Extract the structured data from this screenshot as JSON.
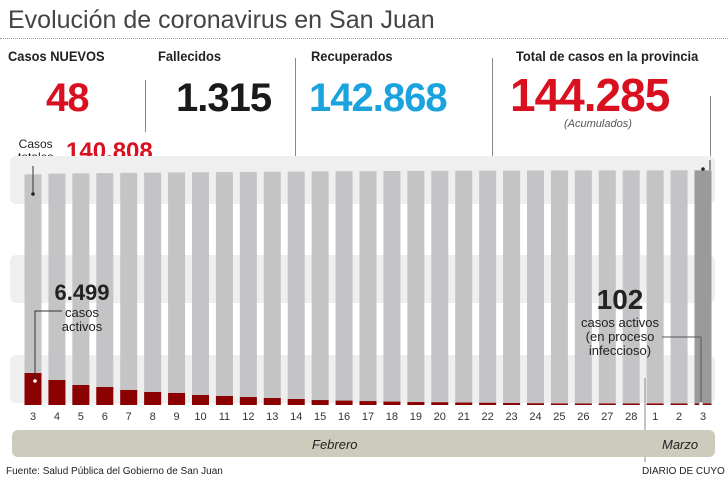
{
  "title": "Evolución de coronavirus en San Juan",
  "stats": {
    "nuevos": {
      "label": "Casos NUEVOS",
      "value": "48",
      "color": "#d8101f"
    },
    "fallecidos": {
      "label": "Fallecidos",
      "value": "1.315",
      "color": "#1a1a1a"
    },
    "recuperados": {
      "label": "Recuperados",
      "value": "142.868",
      "color": "#1aa3dd"
    },
    "total": {
      "label": "Total de casos en la provincia",
      "value": "144.285",
      "note": "(Acumulados)",
      "color": "#d8101f"
    }
  },
  "annotations": {
    "totales_label_1": "Casos",
    "totales_label_2": "totales",
    "totales_value": "140.808",
    "activos_first_value": "6.499",
    "activos_first_l1": "casos",
    "activos_first_l2": "activos",
    "activos_last_value": "102",
    "activos_last_l1": "casos activos",
    "activos_last_l2": "(en proceso",
    "activos_last_l3": "infeccioso)"
  },
  "months": {
    "feb": "Febrero",
    "mar": "Marzo"
  },
  "footer": {
    "source": "Fuente: Salud Pública del Gobierno de San Juan",
    "brand": "DIARIO DE CUYO"
  },
  "chart_data": {
    "type": "bar",
    "categories": [
      "3",
      "4",
      "5",
      "6",
      "7",
      "8",
      "9",
      "10",
      "11",
      "12",
      "13",
      "14",
      "15",
      "16",
      "17",
      "18",
      "19",
      "20",
      "21",
      "22",
      "23",
      "24",
      "25",
      "26",
      "27",
      "28",
      "1",
      "2",
      "3"
    ],
    "series": [
      {
        "name": "Casos totales",
        "color": "#c4c4c6",
        "highlight_color": "#9a9a9c",
        "values": [
          138400,
          138800,
          139000,
          139150,
          139300,
          139450,
          139550,
          139650,
          139750,
          139850,
          139950,
          140050,
          140150,
          140250,
          140320,
          140390,
          140450,
          140510,
          140560,
          140610,
          140650,
          140690,
          140720,
          140745,
          140765,
          140780,
          140792,
          140800,
          140808
        ]
      },
      {
        "name": "casos activos",
        "color": "#8b0000",
        "values": [
          6499,
          5080,
          4060,
          3650,
          3050,
          2640,
          2440,
          2030,
          1830,
          1620,
          1420,
          1220,
          1000,
          900,
          800,
          700,
          600,
          550,
          500,
          450,
          400,
          350,
          300,
          260,
          220,
          180,
          150,
          120,
          102
        ]
      }
    ],
    "xlabel": "",
    "ylabel": "",
    "ylim": [
      0,
      141000
    ],
    "grid": false,
    "legend": "none"
  }
}
